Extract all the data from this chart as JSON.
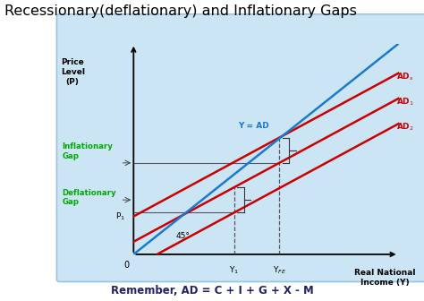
{
  "title": "Recessionary(deflationary) and Inflationary Gaps",
  "title_fontsize": 11.5,
  "footnote": "Remember, AD = C + I + G + X - M",
  "footnote_fontsize": 8.5,
  "outer_bg": "#ffffff",
  "box_bg": "#cce5f5",
  "xlabel": "Real National\nIncome (Y)",
  "ylabel": "Price\nLevel\n(P)",
  "x_range": [
    0,
    10
  ],
  "y_range": [
    0,
    10
  ],
  "y1_x": 3.8,
  "yfe_x": 5.5,
  "p1_y": 1.8,
  "ad_slope": 0.68,
  "ad_int_s": 1.8,
  "ad_int_1": 0.6,
  "ad_int_2": -0.6,
  "yad_slope": 1.0,
  "ad_color": "#cc0000",
  "yad_color": "#1a7acc",
  "green_color": "#00aa00",
  "line_width": 1.8,
  "yad_lw": 1.8,
  "dash_color": "#555566"
}
